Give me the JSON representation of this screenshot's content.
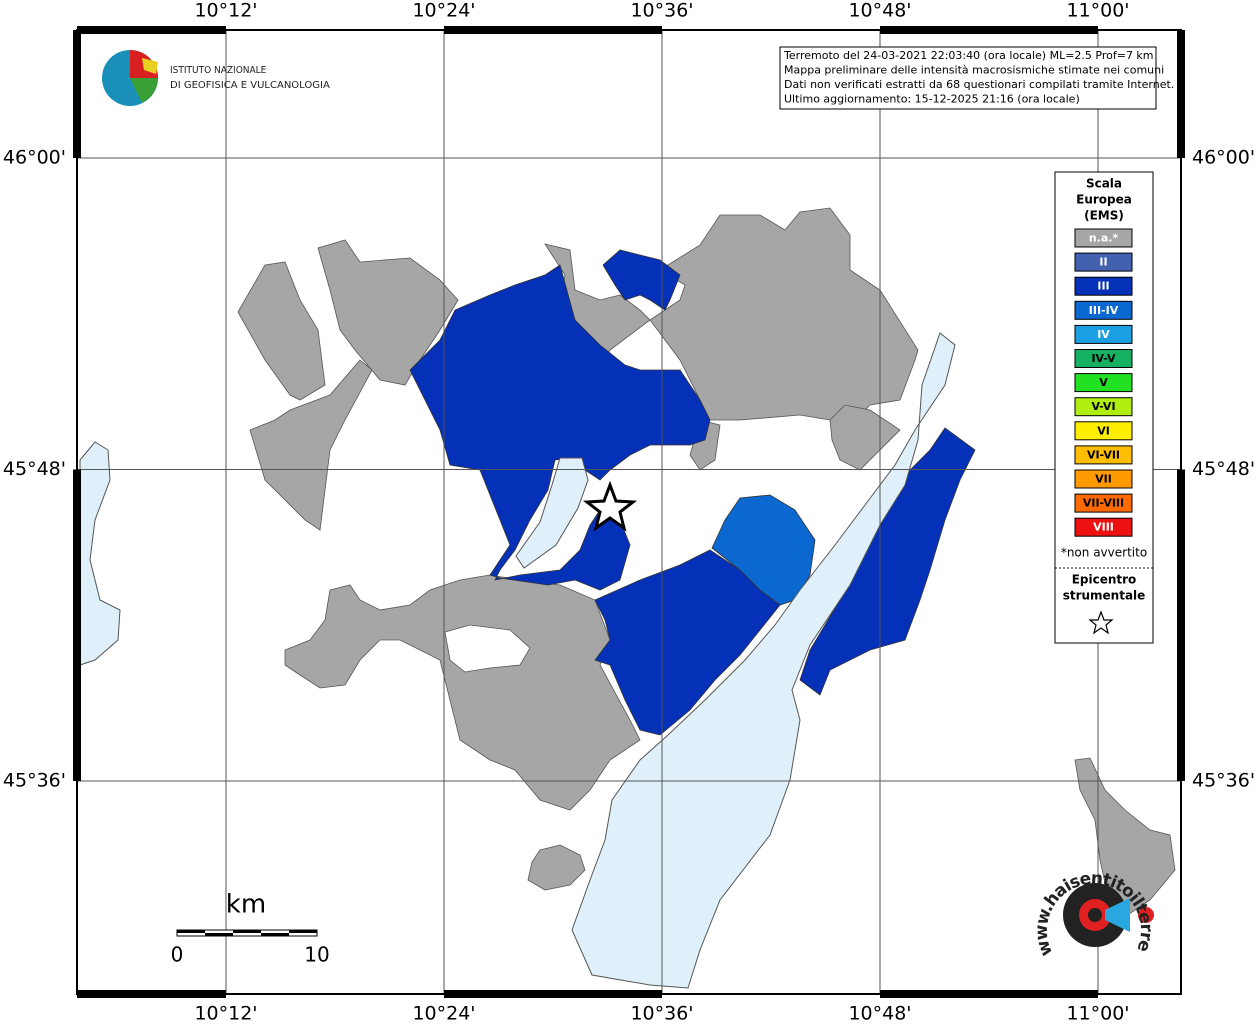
{
  "grid": {
    "longitudes": [
      "10°12'",
      "10°24'",
      "10°36'",
      "10°48'",
      "11°00'"
    ],
    "latitudes": [
      "46°00'",
      "45°48'",
      "45°36'"
    ]
  },
  "logo": {
    "line1": "ISTITUTO NAZIONALE",
    "line2": "DI GEOFISICA E VULCANOLOGIA"
  },
  "info": [
    "Terremoto del 24-03-2021 22:03:40 (ora locale) ML=2.5 Prof=7 km",
    "Mappa preliminare delle intensità macrosismiche stimate nei comuni",
    "Dati non verificati estratti da 68 questionari compilati tramite Internet.",
    "Ultimo aggiornamento: 15-12-2025 21:16 (ora locale)"
  ],
  "legend": {
    "title": [
      "Scala",
      "Europea",
      "(EMS)"
    ],
    "items": [
      {
        "label": "n.a.*",
        "color": "#a6a6a6",
        "text": "#ffffff"
      },
      {
        "label": "II",
        "color": "#4262b0",
        "text": "#ffffff"
      },
      {
        "label": "III",
        "color": "#0530b8",
        "text": "#ffffff"
      },
      {
        "label": "III-IV",
        "color": "#0a68d0",
        "text": "#ffffff"
      },
      {
        "label": "IV",
        "color": "#1a9fe2",
        "text": "#ffffff"
      },
      {
        "label": "IV-V",
        "color": "#15b060",
        "text": "#000000"
      },
      {
        "label": "V",
        "color": "#22e022",
        "text": "#000000"
      },
      {
        "label": "V-VI",
        "color": "#b0ee10",
        "text": "#000000"
      },
      {
        "label": "VI",
        "color": "#ffee00",
        "text": "#000000"
      },
      {
        "label": "VI-VII",
        "color": "#ffbf00",
        "text": "#000000"
      },
      {
        "label": "VII",
        "color": "#ff9a00",
        "text": "#000000"
      },
      {
        "label": "VII-VIII",
        "color": "#ff6a00",
        "text": "#000000"
      },
      {
        "label": "VIII",
        "color": "#ee1111",
        "text": "#ffffff"
      }
    ],
    "note": "*non avvertito",
    "epicenter": [
      "Epicentro",
      "strumentale"
    ]
  },
  "scale_bar": {
    "unit": "km",
    "start": "0",
    "end": "10"
  },
  "site_logo": "www.haisentitoilterremoto.it"
}
